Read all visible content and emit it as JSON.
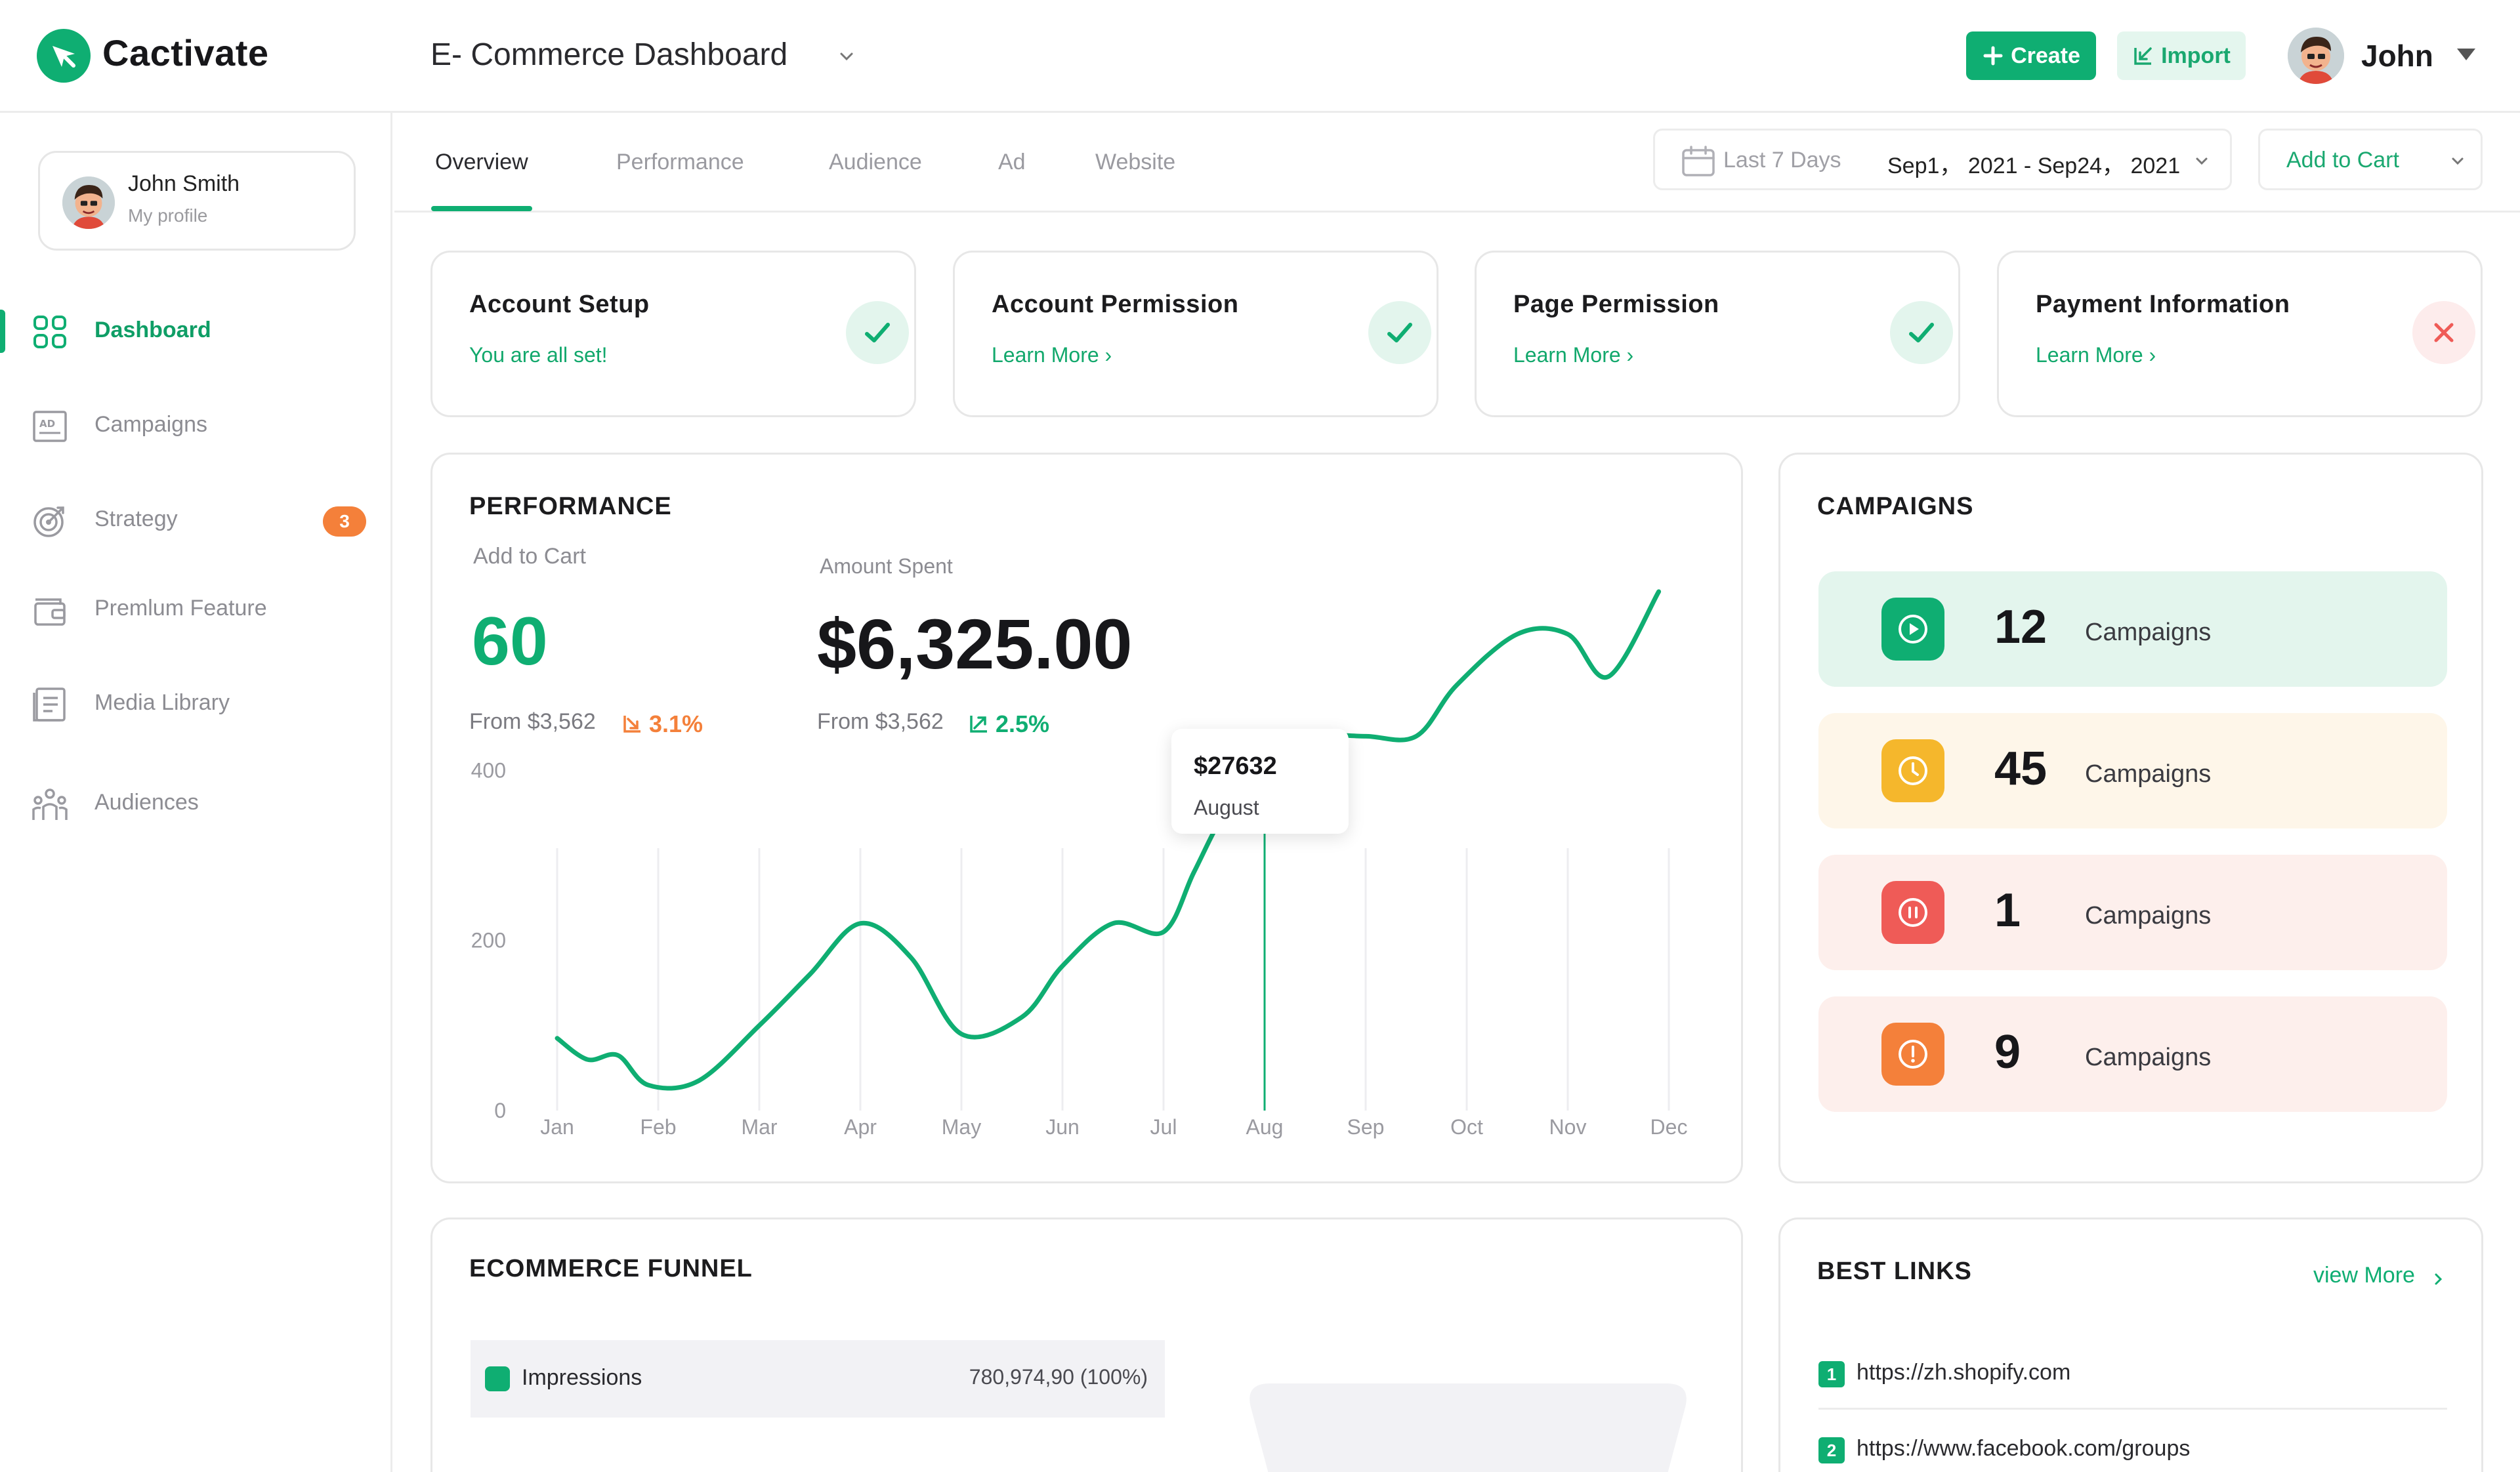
{
  "app": {
    "name": "Cactivate",
    "dashboard_title": "E- Commerce Dashboard"
  },
  "header": {
    "create_label": "Create",
    "import_label": "Import",
    "user_name": "John"
  },
  "profile": {
    "name": "John Smith",
    "subtitle": "My profile"
  },
  "sidebar": {
    "items": [
      {
        "label": "Dashboard",
        "icon": "grid-icon",
        "active": true
      },
      {
        "label": "Campaigns",
        "icon": "ad-icon"
      },
      {
        "label": "Strategy",
        "icon": "target-icon",
        "badge": "3"
      },
      {
        "label": "Premlum Feature",
        "icon": "wallet-icon"
      },
      {
        "label": "Media Library",
        "icon": "library-icon"
      },
      {
        "label": "Audiences",
        "icon": "audience-icon"
      }
    ]
  },
  "tabs": [
    "Overview",
    "Performance",
    "Audience",
    "Ad",
    "Website"
  ],
  "date_range": {
    "preset": "Last 7 Days",
    "value": "Sep1， 2021 - Sep24， 2021"
  },
  "metric_select": "Add to Cart",
  "status_cards": [
    {
      "title": "Account Setup",
      "sub": "You are all set!",
      "status": "ok"
    },
    {
      "title": "Account Permission",
      "sub": "Learn More ›",
      "status": "ok"
    },
    {
      "title": "Page Permission",
      "sub": "Learn More ›",
      "status": "ok"
    },
    {
      "title": "Payment Information",
      "sub": "Learn More ›",
      "status": "error"
    }
  ],
  "performance": {
    "title": "PERFORMANCE",
    "kpi1": {
      "label": "Add to Cart",
      "value": "60",
      "from": "From $3,562",
      "delta": "3.1%"
    },
    "kpi2": {
      "label": "Amount Spent",
      "value": "$6,325.00",
      "from": "From $3,562",
      "delta": "2.5%"
    },
    "tooltip": {
      "value": "$27632",
      "label": "August"
    }
  },
  "chart_data": {
    "type": "line",
    "categories": [
      "Jan",
      "Feb",
      "Mar",
      "Apr",
      "May",
      "Jun",
      "Jul",
      "Aug",
      "Sep",
      "Oct",
      "Nov",
      "Dec"
    ],
    "x": [
      0,
      0.3,
      0.6,
      0.9,
      1.4,
      2,
      2.5,
      3,
      3.5,
      4,
      4.6,
      5,
      5.5,
      6,
      6.3,
      6.6,
      7,
      7.5,
      8,
      8.5,
      8.9,
      9.5,
      10,
      10.4,
      10.9
    ],
    "values": [
      85,
      60,
      65,
      30,
      35,
      100,
      160,
      220,
      180,
      90,
      110,
      170,
      220,
      210,
      280,
      350,
      420,
      440,
      440,
      440,
      500,
      560,
      560,
      510,
      610
    ],
    "highlight": {
      "category": "Aug",
      "index": 7
    },
    "ylim": [
      0,
      640
    ],
    "yticks": [
      0,
      200,
      400
    ],
    "grid": "vertical",
    "color": "#0fae72"
  },
  "campaigns": {
    "title": "CAMPAIGNS",
    "rows": [
      {
        "count": "12",
        "label": "Campaigns",
        "icon": "play-icon",
        "bg": "#e3f5ed",
        "fg": "#0fae72"
      },
      {
        "count": "45",
        "label": "Campaigns",
        "icon": "clock-icon",
        "bg": "#fef6e9",
        "fg": "#f5b72c"
      },
      {
        "count": "1",
        "label": "Campaigns",
        "icon": "pause-icon",
        "bg": "#fdefec",
        "fg": "#ef5b57"
      },
      {
        "count": "9",
        "label": "Campaigns",
        "icon": "alert-icon",
        "bg": "#fdefec",
        "fg": "#f4803a"
      }
    ]
  },
  "funnel": {
    "title": "ECOMMERCE FUNNEL",
    "rows": [
      {
        "name": "Impressions",
        "value": "780,974,90 (100%)"
      }
    ]
  },
  "best_links": {
    "title": "BEST LINKS",
    "view_more": "view More",
    "links": [
      {
        "num": "1",
        "url": "https://zh.shopify.com"
      },
      {
        "num": "2",
        "url": "https://www.facebook.com/groups"
      }
    ]
  },
  "colors": {
    "accent": "#0fae72",
    "warning": "#f4803a",
    "danger": "#ef5b57"
  }
}
